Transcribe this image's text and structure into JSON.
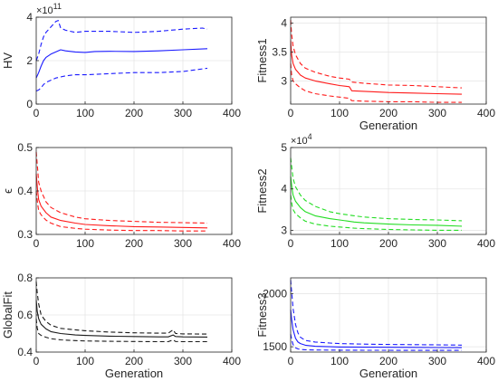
{
  "chart_data": [
    {
      "type": "line",
      "title": "",
      "xlabel": "",
      "ylabel": "HV",
      "exponent": [
        "×10",
        "11"
      ],
      "color": "#1a1aff",
      "grid": true,
      "xlim": [
        0,
        400
      ],
      "ylim": [
        0,
        4
      ],
      "xticks": [
        0,
        100,
        200,
        300,
        400
      ],
      "xticklabels": [
        "0",
        "100",
        "200",
        "300",
        "400"
      ],
      "yticks": [
        0,
        2,
        4
      ],
      "yticklabels": [
        "0",
        "2",
        "4"
      ],
      "series": [
        {
          "role": "mean",
          "dash": false,
          "x": [
            0,
            5,
            10,
            15,
            20,
            30,
            40,
            50,
            60,
            80,
            100,
            120,
            150,
            200,
            250,
            300,
            350
          ],
          "y": [
            1.2,
            1.45,
            1.75,
            2.0,
            2.15,
            2.3,
            2.4,
            2.5,
            2.45,
            2.4,
            2.38,
            2.42,
            2.43,
            2.42,
            2.45,
            2.5,
            2.55
          ]
        },
        {
          "role": "upper",
          "dash": true,
          "x": [
            0,
            5,
            10,
            15,
            20,
            30,
            40,
            45,
            50,
            60,
            80,
            100,
            150,
            200,
            250,
            300,
            340,
            350
          ],
          "y": [
            2.0,
            2.3,
            2.75,
            3.1,
            3.3,
            3.55,
            3.8,
            3.85,
            3.5,
            3.4,
            3.3,
            3.35,
            3.35,
            3.3,
            3.35,
            3.45,
            3.5,
            3.45
          ]
        },
        {
          "role": "lower",
          "dash": true,
          "x": [
            0,
            5,
            10,
            15,
            20,
            30,
            40,
            50,
            60,
            80,
            100,
            150,
            200,
            250,
            300,
            350
          ],
          "y": [
            0.6,
            0.65,
            0.75,
            0.9,
            1.0,
            1.1,
            1.2,
            1.25,
            1.3,
            1.35,
            1.35,
            1.4,
            1.45,
            1.45,
            1.5,
            1.65
          ]
        }
      ]
    },
    {
      "type": "line",
      "title": "",
      "xlabel": "Generation",
      "ylabel": "Fitness1",
      "exponent": null,
      "color": "#ff1a1a",
      "grid": true,
      "xlim": [
        0,
        400
      ],
      "ylim": [
        2.6,
        4.1
      ],
      "xticks": [
        0,
        100,
        200,
        300,
        400
      ],
      "xticklabels": [
        "0",
        "100",
        "200",
        "300",
        "400"
      ],
      "yticks": [
        3,
        3.5,
        4
      ],
      "yticklabels": [
        "3",
        "3.5",
        "4"
      ],
      "series": [
        {
          "role": "mean",
          "dash": false,
          "x": [
            0,
            2,
            5,
            10,
            20,
            30,
            50,
            80,
            100,
            120,
            125,
            150,
            200,
            250,
            300,
            350
          ],
          "y": [
            3.7,
            3.45,
            3.3,
            3.2,
            3.1,
            3.05,
            3.0,
            2.95,
            2.92,
            2.9,
            2.83,
            2.82,
            2.8,
            2.79,
            2.78,
            2.77
          ]
        },
        {
          "role": "upper",
          "dash": true,
          "x": [
            0,
            2,
            5,
            10,
            20,
            30,
            50,
            80,
            100,
            120,
            125,
            150,
            200,
            250,
            300,
            350
          ],
          "y": [
            4.05,
            3.8,
            3.6,
            3.45,
            3.3,
            3.22,
            3.15,
            3.08,
            3.05,
            3.03,
            2.98,
            2.96,
            2.93,
            2.92,
            2.9,
            2.88
          ]
        },
        {
          "role": "lower",
          "dash": true,
          "x": [
            0,
            2,
            5,
            10,
            20,
            30,
            50,
            80,
            100,
            120,
            125,
            150,
            200,
            250,
            300,
            350
          ],
          "y": [
            3.3,
            3.1,
            3.0,
            2.95,
            2.88,
            2.83,
            2.78,
            2.74,
            2.72,
            2.7,
            2.66,
            2.65,
            2.64,
            2.64,
            2.63,
            2.63
          ]
        }
      ]
    },
    {
      "type": "line",
      "title": "",
      "xlabel": "",
      "ylabel": "ϵ",
      "exponent": null,
      "color": "#ff1a1a",
      "grid": true,
      "xlim": [
        0,
        400
      ],
      "ylim": [
        0.3,
        0.5
      ],
      "xticks": [
        0,
        100,
        200,
        300,
        400
      ],
      "xticklabels": [
        "0",
        "100",
        "200",
        "300",
        "400"
      ],
      "yticks": [
        0.3,
        0.4,
        0.5
      ],
      "yticklabels": [
        "0.3",
        "0.4",
        "0.5"
      ],
      "series": [
        {
          "role": "mean",
          "dash": false,
          "x": [
            0,
            3,
            5,
            10,
            20,
            30,
            50,
            80,
            100,
            150,
            200,
            250,
            300,
            350
          ],
          "y": [
            0.44,
            0.4,
            0.38,
            0.365,
            0.35,
            0.34,
            0.332,
            0.326,
            0.323,
            0.32,
            0.318,
            0.317,
            0.316,
            0.315
          ]
        },
        {
          "role": "upper",
          "dash": true,
          "x": [
            0,
            3,
            5,
            10,
            20,
            30,
            50,
            80,
            100,
            150,
            200,
            250,
            300,
            350
          ],
          "y": [
            0.49,
            0.45,
            0.42,
            0.4,
            0.375,
            0.362,
            0.35,
            0.34,
            0.336,
            0.332,
            0.33,
            0.328,
            0.327,
            0.326
          ]
        },
        {
          "role": "lower",
          "dash": true,
          "x": [
            0,
            3,
            5,
            10,
            20,
            30,
            50,
            80,
            100,
            150,
            200,
            250,
            300,
            350
          ],
          "y": [
            0.4,
            0.37,
            0.355,
            0.345,
            0.333,
            0.326,
            0.318,
            0.314,
            0.312,
            0.31,
            0.309,
            0.309,
            0.308,
            0.308
          ]
        }
      ]
    },
    {
      "type": "line",
      "title": "",
      "xlabel": "",
      "ylabel": "Fitness2",
      "exponent": [
        "×10",
        "4"
      ],
      "color": "#22dd22",
      "grid": true,
      "xlim": [
        0,
        400
      ],
      "ylim": [
        2.9,
        5
      ],
      "xticks": [
        0,
        100,
        200,
        300,
        400
      ],
      "xticklabels": [
        "0",
        "100",
        "200",
        "300",
        "400"
      ],
      "yticks": [
        3,
        4,
        5
      ],
      "yticklabels": [
        "3",
        "4",
        "5"
      ],
      "series": [
        {
          "role": "mean",
          "dash": false,
          "x": [
            0,
            3,
            5,
            10,
            20,
            30,
            50,
            80,
            100,
            130,
            150,
            200,
            250,
            300,
            350
          ],
          "y": [
            4.3,
            4.0,
            3.85,
            3.7,
            3.55,
            3.45,
            3.35,
            3.28,
            3.25,
            3.2,
            3.18,
            3.15,
            3.13,
            3.12,
            3.1
          ]
        },
        {
          "role": "upper",
          "dash": true,
          "x": [
            0,
            3,
            5,
            10,
            20,
            30,
            50,
            80,
            100,
            130,
            150,
            200,
            250,
            300,
            350
          ],
          "y": [
            4.75,
            4.45,
            4.25,
            4.05,
            3.85,
            3.72,
            3.58,
            3.45,
            3.4,
            3.35,
            3.32,
            3.28,
            3.26,
            3.25,
            3.23
          ]
        },
        {
          "role": "lower",
          "dash": true,
          "x": [
            0,
            3,
            5,
            10,
            20,
            30,
            50,
            80,
            100,
            130,
            150,
            200,
            250,
            300,
            350
          ],
          "y": [
            3.85,
            3.6,
            3.5,
            3.4,
            3.3,
            3.22,
            3.15,
            3.1,
            3.08,
            3.05,
            3.04,
            3.02,
            3.01,
            3.0,
            3.0
          ]
        }
      ]
    },
    {
      "type": "line",
      "title": "",
      "xlabel": "Generation",
      "ylabel": "GlobalFit",
      "exponent": null,
      "color": "#1a1a1a",
      "grid": true,
      "xlim": [
        0,
        400
      ],
      "ylim": [
        0.4,
        0.8
      ],
      "xticks": [
        0,
        100,
        200,
        300,
        400
      ],
      "xticklabels": [
        "0",
        "100",
        "200",
        "300",
        "400"
      ],
      "yticks": [
        0.4,
        0.6,
        0.8
      ],
      "yticklabels": [
        "0.4",
        "0.6",
        "0.8"
      ],
      "series": [
        {
          "role": "mean",
          "dash": false,
          "x": [
            0,
            2,
            5,
            10,
            20,
            30,
            50,
            80,
            100,
            150,
            200,
            250,
            270,
            280,
            285,
            300,
            350
          ],
          "y": [
            0.68,
            0.62,
            0.58,
            0.55,
            0.525,
            0.51,
            0.5,
            0.492,
            0.49,
            0.486,
            0.484,
            0.482,
            0.482,
            0.492,
            0.484,
            0.482,
            0.481
          ]
        },
        {
          "role": "upper",
          "dash": true,
          "x": [
            0,
            2,
            5,
            10,
            20,
            30,
            50,
            80,
            100,
            150,
            200,
            250,
            270,
            280,
            285,
            300,
            350
          ],
          "y": [
            0.78,
            0.72,
            0.66,
            0.6,
            0.565,
            0.545,
            0.528,
            0.52,
            0.515,
            0.508,
            0.504,
            0.502,
            0.502,
            0.52,
            0.5,
            0.498,
            0.497
          ]
        },
        {
          "role": "lower",
          "dash": true,
          "x": [
            0,
            2,
            5,
            10,
            20,
            30,
            50,
            80,
            100,
            150,
            200,
            250,
            270,
            280,
            285,
            300,
            350
          ],
          "y": [
            0.58,
            0.53,
            0.5,
            0.49,
            0.48,
            0.472,
            0.466,
            0.462,
            0.46,
            0.458,
            0.457,
            0.456,
            0.456,
            0.466,
            0.457,
            0.456,
            0.456
          ]
        }
      ]
    },
    {
      "type": "line",
      "title": "",
      "xlabel": "Generation",
      "ylabel": "Fitness3",
      "exponent": null,
      "color": "#1a1aff",
      "grid": true,
      "xlim": [
        0,
        400
      ],
      "ylim": [
        1450,
        2150
      ],
      "xticks": [
        0,
        100,
        200,
        300,
        400
      ],
      "xticklabels": [
        "0",
        "100",
        "200",
        "300",
        "400"
      ],
      "yticks": [
        1500,
        2000
      ],
      "yticklabels": [
        "1500",
        "2000"
      ],
      "series": [
        {
          "role": "mean",
          "dash": false,
          "x": [
            0,
            2,
            5,
            10,
            15,
            20,
            30,
            50,
            80,
            100,
            150,
            200,
            250,
            300,
            350
          ],
          "y": [
            1850,
            1760,
            1660,
            1580,
            1545,
            1530,
            1515,
            1505,
            1500,
            1498,
            1496,
            1495,
            1494,
            1493,
            1492
          ]
        },
        {
          "role": "upper",
          "dash": true,
          "x": [
            0,
            2,
            5,
            10,
            15,
            20,
            30,
            50,
            80,
            100,
            150,
            200,
            250,
            300,
            350
          ],
          "y": [
            2130,
            2020,
            1860,
            1710,
            1630,
            1590,
            1560,
            1545,
            1535,
            1530,
            1525,
            1522,
            1520,
            1518,
            1516
          ]
        },
        {
          "role": "lower",
          "dash": true,
          "x": [
            0,
            2,
            5,
            10,
            15,
            20,
            30,
            50,
            80,
            100,
            150,
            200,
            250,
            300,
            350
          ],
          "y": [
            1620,
            1570,
            1520,
            1490,
            1480,
            1475,
            1472,
            1470,
            1469,
            1468,
            1467,
            1467,
            1466,
            1466,
            1466
          ]
        }
      ]
    }
  ]
}
